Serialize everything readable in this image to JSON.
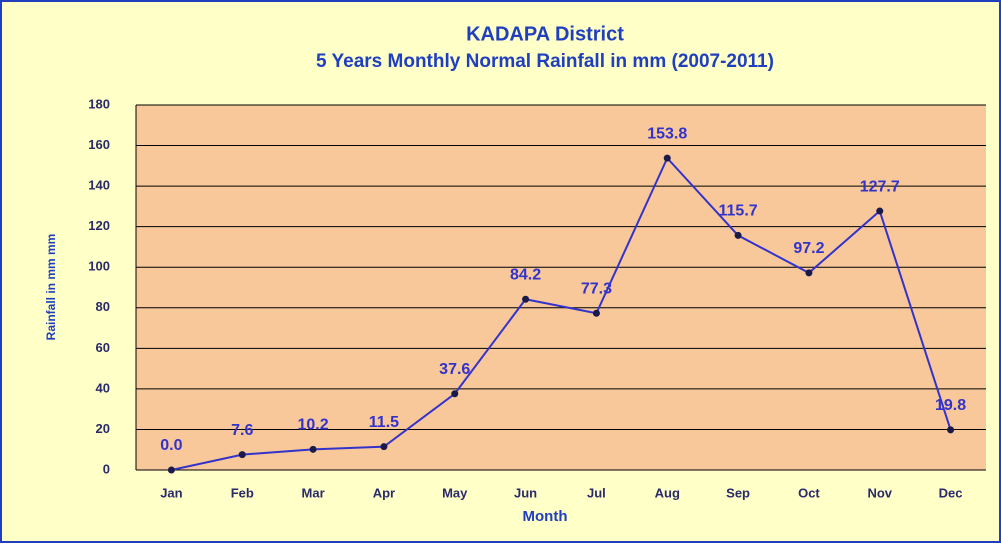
{
  "chart_data": {
    "type": "line",
    "title": "KADAPA District",
    "subtitle": "5 Years Monthly Normal Rainfall in mm (2007-2011)",
    "x_label": "Month",
    "y_label": "Rainfall in mm mm",
    "categories": [
      "Jan",
      "Feb",
      "Mar",
      "Apr",
      "May",
      "Jun",
      "Jul",
      "Aug",
      "Sep",
      "Oct",
      "Nov",
      "Dec"
    ],
    "values": [
      0.0,
      7.6,
      10.2,
      11.5,
      37.6,
      84.2,
      77.3,
      153.8,
      115.7,
      97.2,
      127.7,
      19.8
    ],
    "value_labels": [
      "0.0",
      "7.6",
      "10.2",
      "11.5",
      "37.6",
      "84.2",
      "77.3",
      "153.8",
      "115.7",
      "97.2",
      "127.7",
      "19.8"
    ],
    "color": "#3333cc",
    "ylim": [
      0,
      180
    ],
    "yticks": [
      0,
      20,
      40,
      60,
      80,
      100,
      120,
      140,
      160,
      180
    ],
    "grid": true
  }
}
